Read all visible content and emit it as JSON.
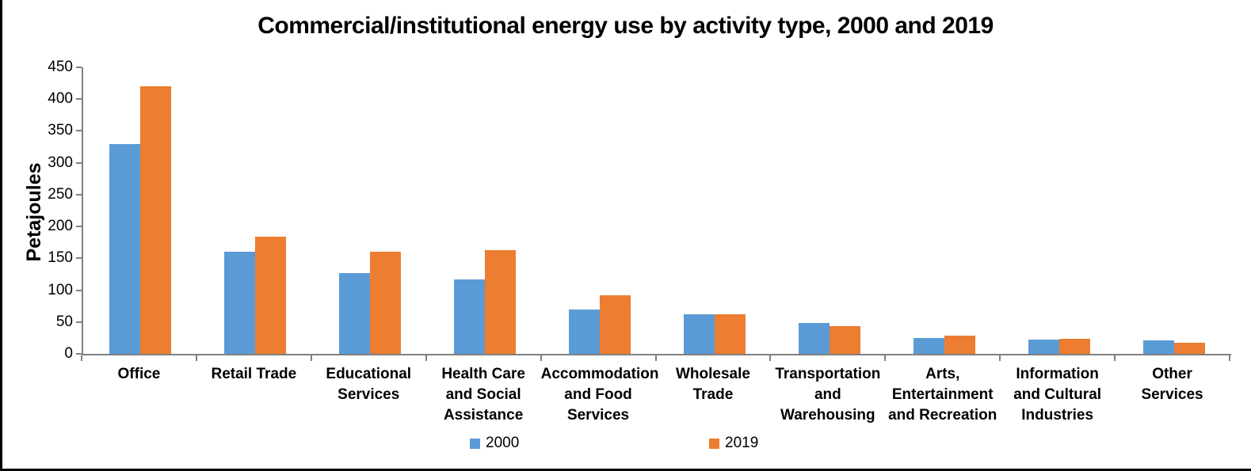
{
  "title": "Commercial/institutional energy use by activity type, 2000 and 2019",
  "colors": {
    "axis": "#808080",
    "text": "#000000",
    "background": "#FFFFFF",
    "frame_border": "#000000",
    "series_2000": "#5B9BD5",
    "series_2019": "#ED7D31"
  },
  "chart_data": {
    "type": "bar",
    "title": "Commercial/institutional energy use by activity type, 2000 and 2019",
    "xlabel": "",
    "ylabel": "Petajoules",
    "ylim": [
      0,
      450
    ],
    "ytick_step": 50,
    "grid": false,
    "legend_position": "bottom",
    "categories": [
      "Office",
      "Retail Trade",
      "Educational Services",
      "Health Care and Social Assistance",
      "Accommodation and Food Services",
      "Wholesale Trade",
      "Transportation and Warehousing",
      "Arts, Entertainment and Recreation",
      "Information and Cultural Industries",
      "Other Services"
    ],
    "category_label_lines": [
      [
        "Office"
      ],
      [
        "Retail Trade"
      ],
      [
        "Educational",
        "Services"
      ],
      [
        "Health Care",
        "and Social",
        "Assistance"
      ],
      [
        "Accommodation",
        "and Food",
        "Services"
      ],
      [
        "Wholesale",
        "Trade"
      ],
      [
        "Transportation",
        "and",
        "Warehousing"
      ],
      [
        "Arts,",
        "Entertainment",
        "and Recreation"
      ],
      [
        "Information",
        "and Cultural",
        "Industries"
      ],
      [
        "Other",
        "Services"
      ]
    ],
    "series": [
      {
        "name": "2000",
        "color": "#5B9BD5",
        "values": [
          330,
          161,
          127,
          117,
          70,
          62,
          49,
          25,
          22,
          21
        ]
      },
      {
        "name": "2019",
        "color": "#ED7D31",
        "values": [
          420,
          184,
          160,
          163,
          92,
          62,
          44,
          29,
          24,
          18
        ]
      }
    ]
  }
}
